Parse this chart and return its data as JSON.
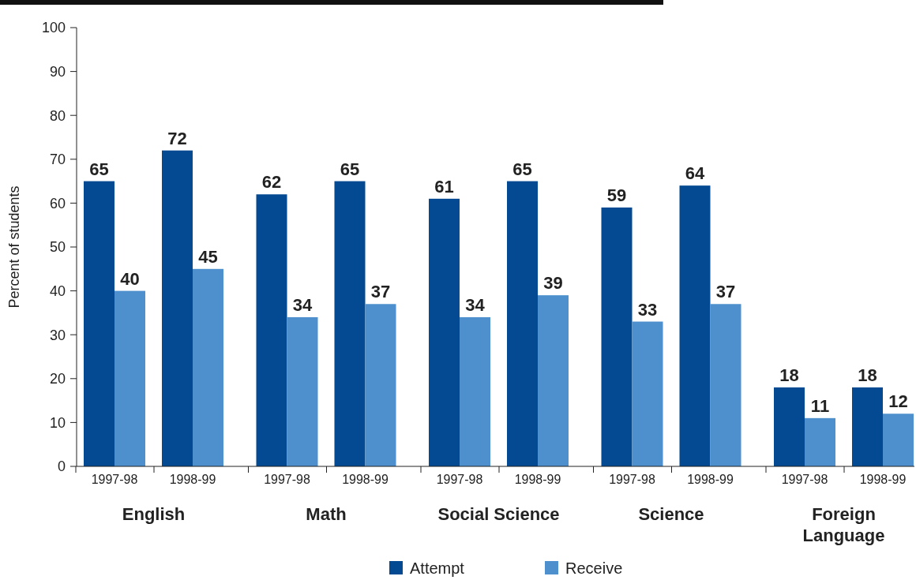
{
  "chart_data": {
    "type": "bar",
    "ylabel": "Percent of students",
    "categories": [
      "1997-98",
      "1998-99",
      "1997-98",
      "1998-99",
      "1997-98",
      "1998-99",
      "1997-98",
      "1998-99",
      "1997-98",
      "1998-99"
    ],
    "annotations": [
      "English",
      "Math",
      "Social Science",
      "Science",
      "Foreign Language"
    ],
    "series": [
      {
        "name": "Attempt",
        "color": "#034a92",
        "values": [
          65,
          72,
          62,
          65,
          61,
          65,
          59,
          64,
          18,
          18
        ]
      },
      {
        "name": "Receive",
        "color": "#4d90cd",
        "values": [
          40,
          45,
          34,
          37,
          34,
          39,
          33,
          37,
          11,
          12
        ]
      }
    ],
    "ylim": [
      0,
      100
    ],
    "yticks": [
      0,
      10,
      20,
      30,
      40,
      50,
      60,
      70,
      80,
      90,
      100
    ],
    "data_labels": true,
    "legend": "bottom",
    "grid": false
  }
}
